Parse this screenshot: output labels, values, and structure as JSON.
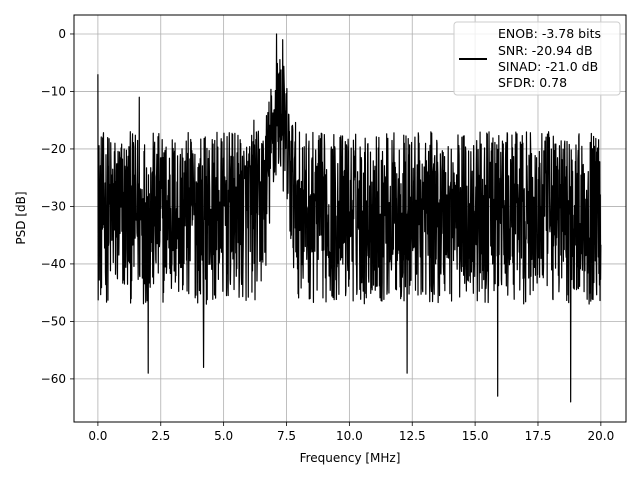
{
  "chart_data": {
    "type": "line",
    "title": "",
    "xlabel": "Frequency [MHz]",
    "ylabel": "PSD [dB]",
    "xlim": [
      -0.95,
      21.0
    ],
    "ylim": [
      -67.5,
      3.3
    ],
    "xticks": [
      0.0,
      2.5,
      5.0,
      7.5,
      10.0,
      12.5,
      15.0,
      17.5,
      20.0
    ],
    "xtick_labels": [
      "0.0",
      "2.5",
      "5.0",
      "7.5",
      "10.0",
      "12.5",
      "15.0",
      "17.5",
      "20.0"
    ],
    "yticks": [
      0,
      -10,
      -20,
      -30,
      -40,
      -50,
      -60
    ],
    "ytick_labels": [
      "0",
      "−10",
      "−20",
      "−30",
      "−40",
      "−50",
      "−60"
    ],
    "grid": true,
    "legend_position": "top-right",
    "series": [
      {
        "color": "#000000",
        "x_range": [
          0.0,
          20.0
        ],
        "noise_floor_db": [
          -47,
          -17
        ],
        "noise_floor_median_db": -30,
        "features": [
          {
            "x": 0.0,
            "y": -7
          },
          {
            "x": 1.65,
            "y": -11
          },
          {
            "x": 7.1,
            "y": 0
          },
          {
            "x": 7.35,
            "y": -1
          },
          {
            "x": 6.2,
            "y": -15
          },
          {
            "x": 12.3,
            "y": -59
          },
          {
            "x": 15.9,
            "y": -63
          },
          {
            "x": 18.8,
            "y": -64
          },
          {
            "x": 2.0,
            "y": -59
          },
          {
            "x": 4.2,
            "y": -58
          }
        ]
      }
    ],
    "legend": {
      "entries": [
        "ENOB: -3.78 bits",
        "SNR: -20.94 dB",
        "SINAD: -21.0 dB",
        "SFDR: 0.78"
      ]
    }
  }
}
